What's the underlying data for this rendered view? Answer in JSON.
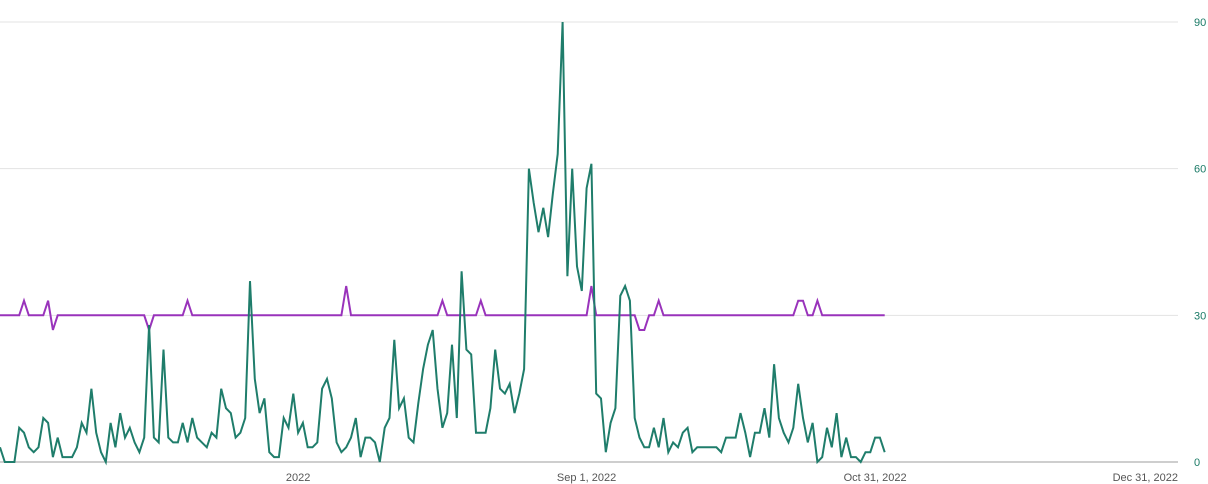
{
  "chart_data": {
    "type": "line",
    "title": "",
    "xlabel": "",
    "ylabel": "",
    "x_tick_labels": [
      "2022",
      "Sep 1, 2022",
      "Oct 31, 2022",
      "Dec 31, 2022"
    ],
    "x_tick_days": [
      0,
      60,
      120,
      180
    ],
    "x_range_days": [
      -62,
      183
    ],
    "y_ticks": [
      0,
      30,
      60,
      90
    ],
    "y_tick_labels": [
      "0",
      "30",
      "60",
      "90"
    ],
    "ylim": [
      0,
      90
    ],
    "y_axis_side": "right",
    "grid": true,
    "colors": {
      "series_green": "#1f7d6b",
      "series_purple": "#9933bb",
      "y_tick_text": "#1a7a66"
    },
    "series": [
      {
        "key": "green",
        "points": [
          [
            -62,
            3
          ],
          [
            -61,
            0
          ],
          [
            -60,
            0
          ],
          [
            -59,
            0
          ],
          [
            -58,
            7
          ],
          [
            -57,
            6
          ],
          [
            -56,
            3
          ],
          [
            -55,
            2
          ],
          [
            -54,
            3
          ],
          [
            -53,
            9
          ],
          [
            -52,
            8
          ],
          [
            -51,
            1
          ],
          [
            -50,
            5
          ],
          [
            -49,
            1
          ],
          [
            -48,
            1
          ],
          [
            -47,
            1
          ],
          [
            -46,
            3
          ],
          [
            -45,
            8
          ],
          [
            -44,
            6
          ],
          [
            -43,
            15
          ],
          [
            -42,
            6
          ],
          [
            -41,
            2
          ],
          [
            -40,
            0
          ],
          [
            -39,
            8
          ],
          [
            -38,
            3
          ],
          [
            -37,
            10
          ],
          [
            -36,
            5
          ],
          [
            -35,
            7
          ],
          [
            -34,
            4
          ],
          [
            -33,
            2
          ],
          [
            -32,
            5
          ],
          [
            -31,
            28
          ],
          [
            -30,
            5
          ],
          [
            -29,
            4
          ],
          [
            -28,
            23
          ],
          [
            -27,
            5
          ],
          [
            -26,
            4
          ],
          [
            -25,
            4
          ],
          [
            -24,
            8
          ],
          [
            -23,
            4
          ],
          [
            -22,
            9
          ],
          [
            -21,
            5
          ],
          [
            -20,
            4
          ],
          [
            -19,
            3
          ],
          [
            -18,
            6
          ],
          [
            -17,
            5
          ],
          [
            -16,
            15
          ],
          [
            -15,
            11
          ],
          [
            -14,
            10
          ],
          [
            -13,
            5
          ],
          [
            -12,
            6
          ],
          [
            -11,
            9
          ],
          [
            -10,
            37
          ],
          [
            -9,
            17
          ],
          [
            -8,
            10
          ],
          [
            -7,
            13
          ],
          [
            -6,
            2
          ],
          [
            -5,
            1
          ],
          [
            -4,
            1
          ],
          [
            -3,
            9
          ],
          [
            -2,
            7
          ],
          [
            -1,
            14
          ],
          [
            0,
            6
          ],
          [
            1,
            8
          ],
          [
            2,
            3
          ],
          [
            3,
            3
          ],
          [
            4,
            4
          ],
          [
            5,
            15
          ],
          [
            6,
            17
          ],
          [
            7,
            13
          ],
          [
            8,
            4
          ],
          [
            9,
            2
          ],
          [
            10,
            3
          ],
          [
            11,
            5
          ],
          [
            12,
            9
          ],
          [
            13,
            1
          ],
          [
            14,
            5
          ],
          [
            15,
            5
          ],
          [
            16,
            4
          ],
          [
            17,
            0
          ],
          [
            18,
            7
          ],
          [
            19,
            9
          ],
          [
            20,
            25
          ],
          [
            21,
            11
          ],
          [
            22,
            13
          ],
          [
            23,
            5
          ],
          [
            24,
            4
          ],
          [
            25,
            12
          ],
          [
            26,
            19
          ],
          [
            27,
            24
          ],
          [
            28,
            27
          ],
          [
            29,
            15
          ],
          [
            30,
            7
          ],
          [
            31,
            10
          ],
          [
            32,
            24
          ],
          [
            33,
            9
          ],
          [
            34,
            39
          ],
          [
            35,
            23
          ],
          [
            36,
            22
          ],
          [
            37,
            6
          ],
          [
            38,
            6
          ],
          [
            39,
            6
          ],
          [
            40,
            11
          ],
          [
            41,
            23
          ],
          [
            42,
            15
          ],
          [
            43,
            14
          ],
          [
            44,
            16
          ],
          [
            45,
            10
          ],
          [
            46,
            14
          ],
          [
            47,
            19
          ],
          [
            48,
            60
          ],
          [
            49,
            53
          ],
          [
            50,
            47
          ],
          [
            51,
            52
          ],
          [
            52,
            46
          ],
          [
            53,
            55
          ],
          [
            54,
            63
          ],
          [
            55,
            90
          ],
          [
            56,
            38
          ],
          [
            57,
            60
          ],
          [
            58,
            40
          ],
          [
            59,
            35
          ],
          [
            60,
            56
          ],
          [
            61,
            61
          ],
          [
            62,
            14
          ],
          [
            63,
            13
          ],
          [
            64,
            2
          ],
          [
            65,
            8
          ],
          [
            66,
            11
          ],
          [
            67,
            34
          ],
          [
            68,
            36
          ],
          [
            69,
            33
          ],
          [
            70,
            9
          ],
          [
            71,
            5
          ],
          [
            72,
            3
          ],
          [
            73,
            3
          ],
          [
            74,
            7
          ],
          [
            75,
            3
          ],
          [
            76,
            9
          ],
          [
            77,
            2
          ],
          [
            78,
            4
          ],
          [
            79,
            3
          ],
          [
            80,
            6
          ],
          [
            81,
            7
          ],
          [
            82,
            2
          ],
          [
            83,
            3
          ],
          [
            84,
            3
          ],
          [
            85,
            3
          ],
          [
            86,
            3
          ],
          [
            87,
            3
          ],
          [
            88,
            2
          ],
          [
            89,
            5
          ],
          [
            90,
            5
          ],
          [
            91,
            5
          ],
          [
            92,
            10
          ],
          [
            93,
            6
          ],
          [
            94,
            1
          ],
          [
            95,
            6
          ],
          [
            96,
            6
          ],
          [
            97,
            11
          ],
          [
            98,
            5
          ],
          [
            99,
            20
          ],
          [
            100,
            9
          ],
          [
            101,
            6
          ],
          [
            102,
            4
          ],
          [
            103,
            7
          ],
          [
            104,
            16
          ],
          [
            105,
            9
          ],
          [
            106,
            4
          ],
          [
            107,
            8
          ],
          [
            108,
            0
          ],
          [
            109,
            1
          ],
          [
            110,
            7
          ],
          [
            111,
            3
          ],
          [
            112,
            10
          ],
          [
            113,
            1
          ],
          [
            114,
            5
          ],
          [
            115,
            1
          ],
          [
            116,
            1
          ],
          [
            117,
            0
          ],
          [
            118,
            2
          ],
          [
            119,
            2
          ],
          [
            120,
            5
          ],
          [
            121,
            5
          ],
          [
            122,
            2
          ]
        ]
      },
      {
        "key": "purple",
        "points": [
          [
            -62,
            30
          ],
          [
            -58,
            30
          ],
          [
            -57,
            33
          ],
          [
            -56,
            30
          ],
          [
            -53,
            30
          ],
          [
            -52,
            33
          ],
          [
            -51,
            27
          ],
          [
            -50,
            30
          ],
          [
            -32,
            30
          ],
          [
            -31,
            27
          ],
          [
            -30,
            30
          ],
          [
            -24,
            30
          ],
          [
            -23,
            33
          ],
          [
            -22,
            30
          ],
          [
            9,
            30
          ],
          [
            10,
            36
          ],
          [
            11,
            30
          ],
          [
            29,
            30
          ],
          [
            30,
            33
          ],
          [
            31,
            30
          ],
          [
            37,
            30
          ],
          [
            38,
            33
          ],
          [
            39,
            30
          ],
          [
            60,
            30
          ],
          [
            61,
            36
          ],
          [
            62,
            30
          ],
          [
            70,
            30
          ],
          [
            71,
            27
          ],
          [
            72,
            27
          ],
          [
            73,
            30
          ],
          [
            74,
            30
          ],
          [
            75,
            33
          ],
          [
            76,
            30
          ],
          [
            103,
            30
          ],
          [
            104,
            33
          ],
          [
            105,
            33
          ],
          [
            106,
            30
          ],
          [
            107,
            30
          ],
          [
            108,
            33
          ],
          [
            109,
            30
          ],
          [
            122,
            30
          ]
        ]
      }
    ]
  }
}
